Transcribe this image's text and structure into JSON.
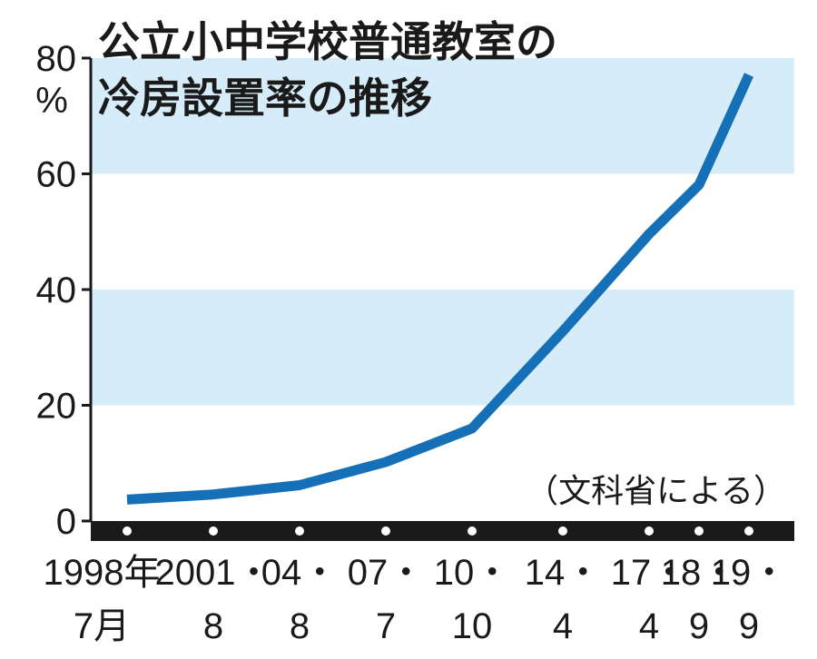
{
  "chart_data": {
    "type": "line",
    "title_lines": [
      "公立小中学校普通教室の",
      "冷房設置率の推移"
    ],
    "y_unit": "%",
    "ylim": [
      0,
      80
    ],
    "y_ticks": [
      0,
      20,
      40,
      60,
      80
    ],
    "shaded_bands": [
      [
        20,
        40
      ],
      [
        60,
        80
      ]
    ],
    "x": [
      {
        "top": "1998年",
        "bottom": "7月"
      },
      {
        "top": "2001・",
        "bottom": "8"
      },
      {
        "top": "04・",
        "bottom": "8"
      },
      {
        "top": "07・",
        "bottom": "7"
      },
      {
        "top": "10・",
        "bottom": "10"
      },
      {
        "top": "14・",
        "bottom": "4"
      },
      {
        "top": "17・",
        "bottom": "4"
      },
      {
        "top": "18・",
        "bottom": "9"
      },
      {
        "top": "19・",
        "bottom": "9"
      }
    ],
    "series": [
      {
        "values": [
          3.7,
          4.6,
          6.2,
          10.2,
          16.0,
          32.8,
          49.6,
          58.1,
          77.1
        ]
      }
    ],
    "source_note": "（文科省による）"
  },
  "colors": {
    "line": "#1570b7",
    "band": "#d6ecf8",
    "axis": "#1a1a1a",
    "marker": "#ffffff"
  }
}
